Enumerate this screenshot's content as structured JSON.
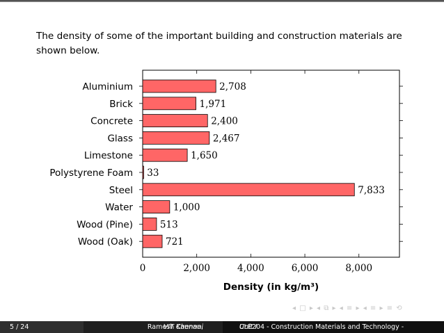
{
  "intro_text": "The density of some of the important building and construction materials are shown below.",
  "chart_data": {
    "type": "bar",
    "orientation": "horizontal",
    "categories": [
      "Aluminium",
      "Brick",
      "Concrete",
      "Glass",
      "Limestone",
      "Polystyrene Foam",
      "Steel",
      "Water",
      "Wood (Pine)",
      "Wood (Oak)"
    ],
    "values": [
      2708,
      1971,
      2400,
      2467,
      1650,
      33,
      7833,
      1000,
      513,
      721
    ],
    "value_labels": [
      "2,708",
      "1,971",
      "2,400",
      "2,467",
      "1,650",
      "33",
      "7,833",
      "1,000",
      "513",
      "721"
    ],
    "title": "",
    "xlabel": "Density (in kg/m³)",
    "ylabel": "",
    "xlim": [
      0,
      9500
    ],
    "xticks": [
      0,
      2000,
      4000,
      6000,
      8000
    ],
    "xtick_labels": [
      "0",
      "2,000",
      "4,000",
      "6,000",
      "8,000"
    ],
    "bar_color": "#ff6666",
    "grid": false,
    "legend": "none"
  },
  "footer": {
    "page": "5 / 24",
    "author": "Ramesh Kannan,",
    "affiliation": "VIT Chennai",
    "course": "CLE204 - Construction Materials and Technology -",
    "unit": "Unit I"
  },
  "nav_symbols": "◂ □ ▸ ◂ ⧉ ▸ ◂ ≡ ▸ ◂ ≡ ▸ ≡ ⟲"
}
